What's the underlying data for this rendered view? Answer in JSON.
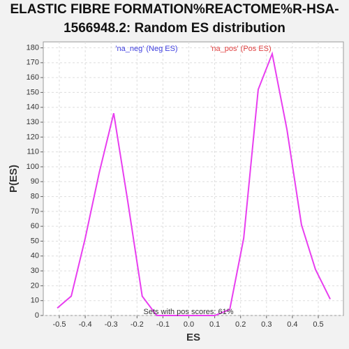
{
  "chart_data": {
    "type": "line",
    "title": [
      "ELASTIC FIBRE FORMATION%REACTOME%R-HSA-",
      "1566948.2: Random ES distribution"
    ],
    "x_label": "ES",
    "y_label": "P(ES)",
    "legend": [
      "'na_neg' (Neg ES)",
      "'na_pos' (Pos ES)"
    ],
    "legend_colors": [
      "#4040e0",
      "#e04040"
    ],
    "annotation": "Sets with pos scores: 61%",
    "series": [
      {
        "name": "P(ES)",
        "color": "#e83ef0",
        "x": [
          -0.508,
          -0.454,
          -0.4,
          -0.346,
          -0.29,
          -0.236,
          -0.18,
          -0.124,
          -0.068,
          -0.012,
          0.043,
          0.1,
          0.158,
          0.212,
          0.268,
          0.322,
          0.379,
          0.435,
          0.489,
          0.546
        ],
        "values": [
          5,
          13,
          52,
          96,
          136,
          77,
          13,
          0,
          0,
          0,
          0,
          0,
          4,
          52,
          152,
          176,
          125,
          61,
          31,
          11
        ]
      }
    ],
    "xlim": [
      -0.562,
      0.597
    ],
    "ylim": [
      0,
      184
    ],
    "xticks": [
      -0.5,
      -0.4,
      -0.3,
      -0.2,
      -0.1,
      {
        "value": 0,
        "label": "0.0"
      },
      0.1,
      0.2,
      0.3,
      0.4,
      0.5
    ],
    "yticks": [
      0,
      10,
      20,
      30,
      40,
      50,
      60,
      70,
      80,
      90,
      100,
      110,
      120,
      130,
      140,
      150,
      160,
      170,
      180
    ],
    "grid": true
  }
}
